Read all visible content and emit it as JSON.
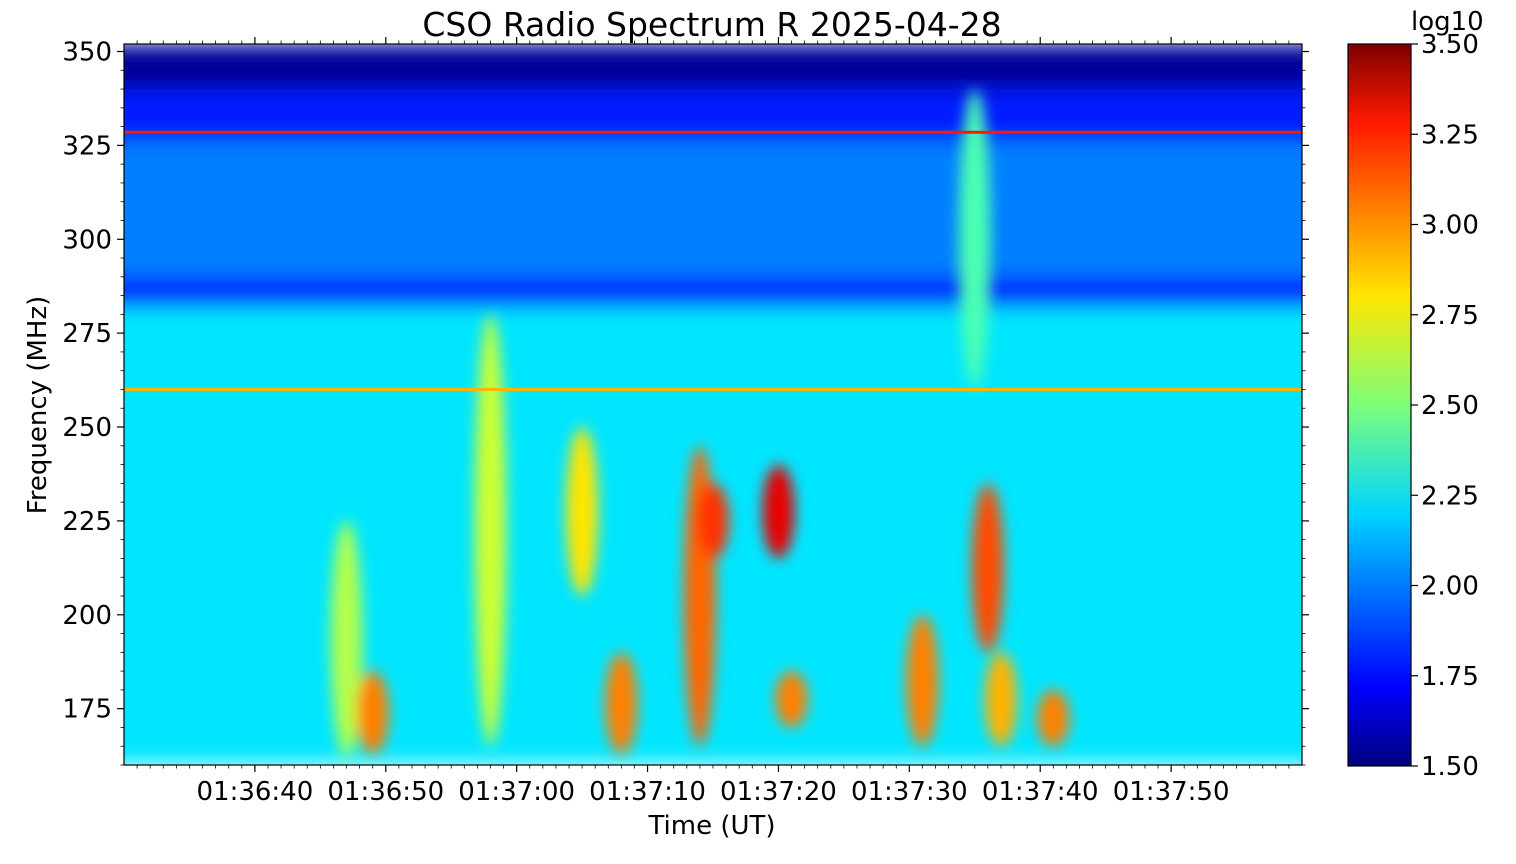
{
  "chart_data": {
    "type": "heatmap",
    "title": "CSO Radio Spectrum R 2025-04-28",
    "xlabel": "Time (UT)",
    "ylabel": "Frequency (MHz)",
    "xlim": [
      "01:36:30",
      "01:38:00"
    ],
    "ylim": [
      160,
      352
    ],
    "x_ticks": [
      "01:36:40",
      "01:36:50",
      "01:37:00",
      "01:37:10",
      "01:37:20",
      "01:37:30",
      "01:37:40",
      "01:37:50"
    ],
    "y_ticks": [
      175,
      200,
      225,
      250,
      275,
      300,
      325,
      350
    ],
    "colorbar": {
      "label": "log10",
      "range": [
        1.5,
        3.5
      ],
      "ticks": [
        "1.50",
        "1.75",
        "2.00",
        "2.25",
        "2.50",
        "2.75",
        "3.00",
        "3.25",
        "3.50"
      ],
      "colormap": "jet"
    },
    "background": [
      {
        "f_min": 340,
        "f_max": 352,
        "value": 1.55
      },
      {
        "f_min": 326,
        "f_max": 340,
        "value": 1.8
      },
      {
        "f_min": 290,
        "f_max": 326,
        "value": 2.0
      },
      {
        "f_min": 282,
        "f_max": 290,
        "value": 1.8
      },
      {
        "f_min": 160,
        "f_max": 282,
        "value": 2.2
      }
    ],
    "interference_lines": [
      {
        "freq": 328.5,
        "value": 3.2
      },
      {
        "freq": 260,
        "value": 2.9
      }
    ],
    "bursts": [
      {
        "time": "01:36:47",
        "f_min": 162,
        "f_max": 225,
        "value": 2.6
      },
      {
        "time": "01:36:49",
        "f_min": 163,
        "f_max": 185,
        "value": 3.0
      },
      {
        "time": "01:36:58",
        "f_min": 165,
        "f_max": 280,
        "value": 2.65
      },
      {
        "time": "01:37:05",
        "f_min": 205,
        "f_max": 250,
        "value": 2.8
      },
      {
        "time": "01:37:08",
        "f_min": 163,
        "f_max": 190,
        "value": 3.0
      },
      {
        "time": "01:37:14",
        "f_min": 165,
        "f_max": 245,
        "value": 3.05
      },
      {
        "time": "01:37:15",
        "f_min": 215,
        "f_max": 235,
        "value": 3.15
      },
      {
        "time": "01:37:20",
        "f_min": 215,
        "f_max": 240,
        "value": 3.3
      },
      {
        "time": "01:37:21",
        "f_min": 170,
        "f_max": 185,
        "value": 3.0
      },
      {
        "time": "01:37:31",
        "f_min": 165,
        "f_max": 200,
        "value": 3.0
      },
      {
        "time": "01:37:36",
        "f_min": 190,
        "f_max": 235,
        "value": 3.1
      },
      {
        "time": "01:37:37",
        "f_min": 165,
        "f_max": 190,
        "value": 2.9
      },
      {
        "time": "01:37:41",
        "f_min": 165,
        "f_max": 180,
        "value": 3.0
      },
      {
        "time": "01:37:35",
        "f_min": 260,
        "f_max": 340,
        "value": 2.4
      }
    ]
  }
}
